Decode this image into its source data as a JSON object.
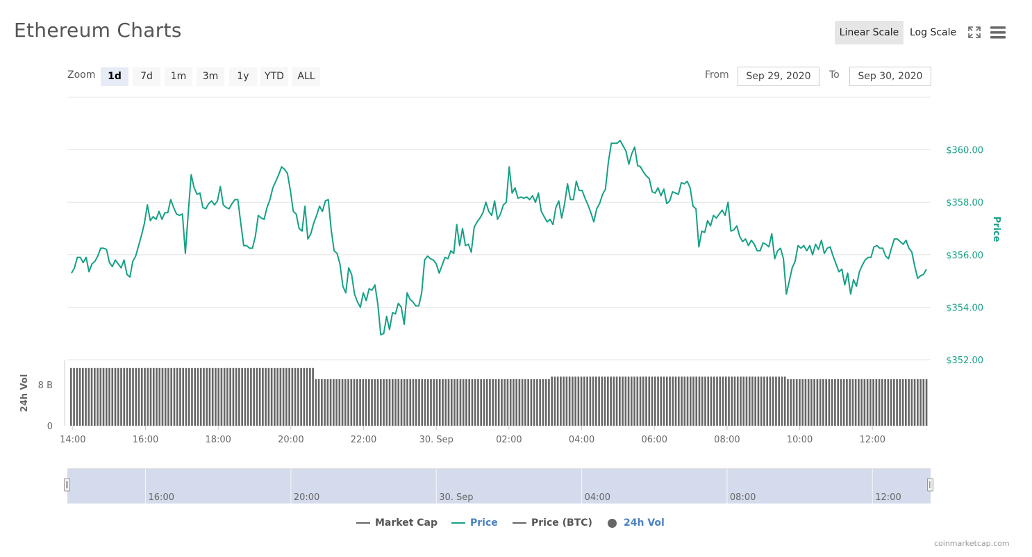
{
  "title": "Ethereum Charts",
  "scale_buttons": {
    "linear": "Linear Scale",
    "log": "Log Scale",
    "active": "linear"
  },
  "icons": {
    "fullscreen": "fullscreen-icon",
    "menu": "hamburger-menu-icon"
  },
  "zoom": {
    "label": "Zoom",
    "buttons": [
      "1d",
      "7d",
      "1m",
      "3m",
      "1y",
      "YTD",
      "ALL"
    ],
    "active": "1d"
  },
  "range": {
    "from_label": "From",
    "from_value": "Sep 29, 2020",
    "to_label": "To",
    "to_value": "Sep 30, 2020"
  },
  "colors": {
    "price": "#16a085",
    "market_cap": "#666666",
    "price_btc": "#666666",
    "volume": "#666666",
    "navigator": "#d4dbec",
    "active_legend": "#4b82c0"
  },
  "legend": [
    {
      "label": "Market Cap",
      "kind": "line",
      "color": "#666666",
      "active": false
    },
    {
      "label": "Price",
      "kind": "line",
      "color": "#16a085",
      "active": true
    },
    {
      "label": "Price (BTC)",
      "kind": "line",
      "color": "#666666",
      "active": false
    },
    {
      "label": "24h Vol",
      "kind": "dot",
      "color": "#666666",
      "active": true
    }
  ],
  "credits": "coinmarketcap.com",
  "chart_data": [
    {
      "type": "line",
      "series": [
        {
          "name": "Price",
          "unit": "USD",
          "values": [
            355.3,
            355.5,
            355.9,
            355.9,
            355.7,
            355.9,
            355.35,
            355.65,
            355.75,
            355.95,
            356.25,
            356.25,
            356.2,
            355.7,
            355.55,
            355.8,
            355.65,
            355.5,
            355.8,
            355.25,
            355.15,
            355.75,
            355.95,
            356.35,
            356.75,
            357.2,
            357.9,
            357.3,
            357.45,
            357.35,
            357.65,
            357.35,
            357.6,
            357.6,
            358.1,
            357.8,
            357.55,
            357.5,
            357.55,
            356.05,
            357.6,
            359.05,
            358.55,
            358.3,
            358.35,
            357.8,
            357.75,
            357.95,
            358.05,
            357.9,
            358.05,
            358.6,
            357.9,
            357.8,
            357.75,
            357.95,
            358.1,
            358.1,
            357.2,
            356.35,
            356.35,
            356.25,
            356.25,
            356.7,
            357.5,
            357.4,
            357.35,
            357.8,
            358.1,
            358.55,
            358.8,
            359.05,
            359.35,
            359.25,
            359.1,
            358.45,
            357.65,
            357.55,
            357.0,
            356.9,
            357.85,
            356.6,
            356.8,
            357.2,
            357.5,
            357.85,
            357.65,
            358.05,
            358.1,
            356.95,
            356.15,
            356.05,
            355.65,
            354.8,
            354.55,
            355.5,
            355.25,
            354.5,
            354.2,
            354.0,
            354.55,
            354.25,
            354.7,
            354.65,
            354.85,
            354.1,
            352.95,
            353.0,
            353.65,
            353.15,
            353.8,
            353.75,
            354.15,
            354.0,
            353.35,
            354.55,
            354.3,
            354.2,
            354.05,
            354.05,
            354.55,
            355.8,
            355.95,
            355.85,
            355.8,
            355.65,
            355.3,
            355.6,
            355.9,
            355.85,
            356.15,
            356.05,
            357.15,
            356.35,
            357.0,
            356.35,
            356.4,
            356.1,
            357.05,
            357.25,
            357.4,
            357.6,
            358.0,
            357.65,
            357.5,
            358.05,
            357.35,
            357.55,
            357.9,
            358.0,
            359.35,
            358.35,
            358.55,
            358.15,
            358.2,
            358.15,
            358.2,
            358.1,
            358.25,
            358.0,
            358.35,
            357.65,
            357.45,
            357.25,
            357.35,
            357.15,
            357.8,
            358.05,
            357.4,
            357.95,
            358.7,
            358.1,
            358.1,
            358.8,
            358.45,
            358.45,
            358.15,
            357.9,
            357.6,
            357.25,
            357.75,
            357.95,
            358.3,
            358.5,
            359.55,
            360.25,
            360.25,
            360.25,
            360.35,
            360.15,
            359.95,
            359.45,
            359.85,
            360.1,
            359.4,
            359.35,
            359.15,
            359.0,
            358.9,
            358.4,
            358.35,
            358.55,
            358.25,
            358.5,
            357.95,
            358.05,
            358.4,
            358.35,
            358.3,
            358.75,
            358.7,
            358.8,
            358.55,
            357.85,
            357.75,
            356.3,
            356.9,
            356.85,
            357.3,
            357.1,
            357.5,
            357.4,
            357.55,
            357.7,
            357.5,
            358.0,
            356.9,
            356.95,
            357.1,
            356.7,
            356.5,
            356.6,
            356.35,
            356.55,
            356.4,
            356.15,
            356.15,
            356.45,
            356.4,
            356.3,
            356.8,
            355.85,
            356.15,
            356.25,
            355.85,
            354.5,
            355.0,
            355.5,
            355.75,
            356.35,
            356.25,
            356.35,
            356.15,
            356.35,
            356.0,
            356.4,
            356.2,
            356.55,
            356.05,
            356.25,
            356.3,
            355.95,
            355.65,
            355.35,
            355.45,
            354.85,
            355.3,
            354.5,
            355.05,
            354.8,
            355.35,
            355.6,
            355.8,
            355.9,
            355.9,
            356.3,
            356.35,
            356.25,
            356.25,
            355.95,
            355.85,
            356.25,
            356.6,
            356.6,
            356.5,
            356.4,
            356.55,
            356.25,
            356.1,
            355.55,
            355.1,
            355.2,
            355.25,
            355.45
          ]
        }
      ],
      "y_axis": {
        "title": "Price",
        "ticks": [
          "$360.00",
          "$358.00",
          "$356.00",
          "$354.00",
          "$352.00"
        ],
        "tick_values": [
          360,
          358,
          356,
          354,
          352
        ],
        "range": [
          352,
          362
        ],
        "side": "right"
      },
      "grid": true
    },
    {
      "type": "bar",
      "series": [
        {
          "name": "24h Vol",
          "unit": "B USD",
          "segments": [
            {
              "count": 83,
              "value": 11.3
            },
            {
              "count": 80,
              "value": 9.1
            },
            {
              "count": 80,
              "value": 9.6
            },
            {
              "count": 48,
              "value": 9.1
            }
          ]
        }
      ],
      "y_axis": {
        "title": "24h Vol",
        "ticks": [
          "8 B",
          "0"
        ],
        "tick_values": [
          8,
          0
        ],
        "range": [
          0,
          12.9
        ]
      }
    }
  ],
  "x_axis": {
    "ticks": [
      "14:00",
      "16:00",
      "18:00",
      "20:00",
      "22:00",
      "30. Sep",
      "02:00",
      "04:00",
      "06:00",
      "08:00",
      "10:00",
      "12:00"
    ],
    "tick_index": [
      0,
      2,
      4,
      6,
      8,
      10,
      12,
      14,
      16,
      18,
      20,
      22
    ],
    "hours_span": [
      13.85,
      37.6
    ]
  },
  "navigator": {
    "ticks": [
      "16:00",
      "20:00",
      "30. Sep",
      "04:00",
      "08:00",
      "12:00"
    ],
    "tick_hours": [
      16,
      20,
      24,
      28,
      32,
      36
    ]
  }
}
